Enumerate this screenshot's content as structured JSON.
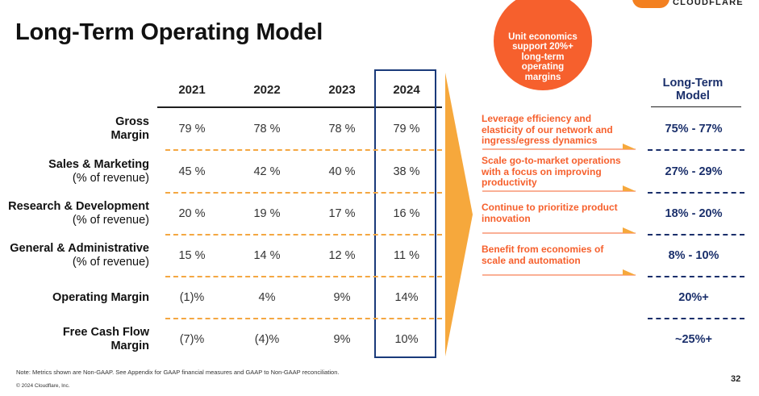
{
  "title": "Long-Term Operating Model",
  "brand": "CLOUDFLARE",
  "circle_text": "Unit economics support 20%+ long-term operating margins",
  "years": [
    "2021",
    "2022",
    "2023",
    "2024"
  ],
  "rows": [
    {
      "label_bold": "Gross",
      "label_bold2": "Margin",
      "label_sub": "",
      "values": [
        "79 %",
        "78 %",
        "78 %",
        "79 %"
      ],
      "long_term": "75% - 77%"
    },
    {
      "label_bold": "Sales & Marketing",
      "label_bold2": "",
      "label_sub": "(% of revenue)",
      "values": [
        "45 %",
        "42 %",
        "40 %",
        "38 %"
      ],
      "long_term": "27% - 29%"
    },
    {
      "label_bold": "Research & Development",
      "label_bold2": "",
      "label_sub": "(% of revenue)",
      "values": [
        "20 %",
        "19 %",
        "17 %",
        "16 %"
      ],
      "long_term": "18% - 20%"
    },
    {
      "label_bold": "General & Administrative",
      "label_bold2": "",
      "label_sub": "(% of revenue)",
      "values": [
        "15 %",
        "14 %",
        "12 %",
        "11 %"
      ],
      "long_term": "8% - 10%"
    },
    {
      "label_bold": "Operating Margin",
      "label_bold2": "",
      "label_sub": "",
      "values": [
        "(1)%",
        "4%",
        "9%",
        "14%"
      ],
      "long_term": "20%+"
    },
    {
      "label_bold": "Free Cash Flow",
      "label_bold2": "Margin",
      "label_sub": "",
      "values": [
        "(7)%",
        "(4)%",
        "9%",
        "10%"
      ],
      "long_term": "~25%+"
    }
  ],
  "levers": [
    "Leverage efficiency and elasticity of our network and ingress/egress dynamics",
    "Scale go-to-market operations with a focus on improving productivity",
    "Continue to prioritize product innovation",
    "Benefit from economies of scale and automation"
  ],
  "long_term_header": "Long-Term Model",
  "note": "Note: Metrics shown are Non-GAAP. See Appendix for GAAP financial measures and GAAP to Non-GAAP reconciliation.",
  "copyright": "© 2024 Cloudflare, Inc.",
  "page_number": "32",
  "colors": {
    "accent_orange": "#f6602d",
    "dash_orange": "#f4a742",
    "navy": "#1a2f6b",
    "box_navy": "#1a3a7a"
  }
}
